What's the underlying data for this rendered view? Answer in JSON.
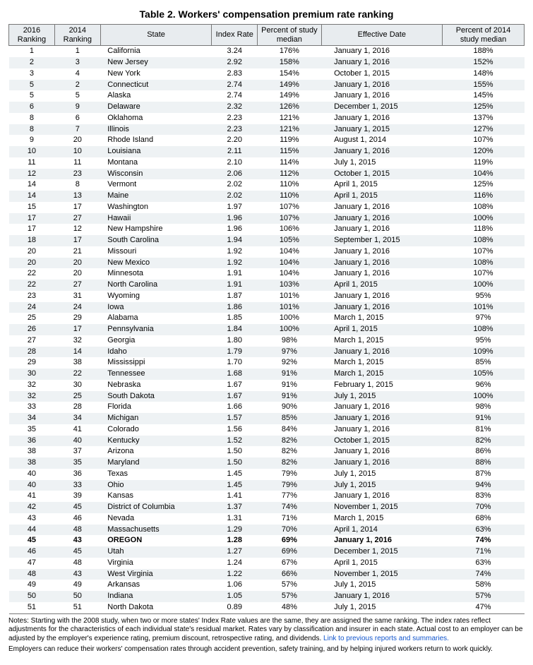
{
  "title": "Table 2. Workers' compensation premium rate ranking",
  "columns": {
    "rank16": "2016\nRanking",
    "rank14": "2014\nRanking",
    "state": "State",
    "index": "Index\nRate",
    "pct": "Percent of\nstudy median",
    "date": "Effective Date",
    "pct14": "Percent of 2014\nstudy median"
  },
  "highlight_state": "OREGON",
  "rows": [
    {
      "r16": "1",
      "r14": "1",
      "state": "California",
      "idx": "3.24",
      "pct": "176%",
      "date": "January 1, 2016",
      "pct14": "188%"
    },
    {
      "r16": "2",
      "r14": "3",
      "state": "New Jersey",
      "idx": "2.92",
      "pct": "158%",
      "date": "January 1, 2016",
      "pct14": "152%"
    },
    {
      "r16": "3",
      "r14": "4",
      "state": "New York",
      "idx": "2.83",
      "pct": "154%",
      "date": "October 1, 2015",
      "pct14": "148%"
    },
    {
      "r16": "5",
      "r14": "2",
      "state": "Connecticut",
      "idx": "2.74",
      "pct": "149%",
      "date": "January 1, 2016",
      "pct14": "155%"
    },
    {
      "r16": "5",
      "r14": "5",
      "state": "Alaska",
      "idx": "2.74",
      "pct": "149%",
      "date": "January 1, 2016",
      "pct14": "145%"
    },
    {
      "r16": "6",
      "r14": "9",
      "state": "Delaware",
      "idx": "2.32",
      "pct": "126%",
      "date": "December 1, 2015",
      "pct14": "125%"
    },
    {
      "r16": "8",
      "r14": "6",
      "state": "Oklahoma",
      "idx": "2.23",
      "pct": "121%",
      "date": "January 1, 2016",
      "pct14": "137%"
    },
    {
      "r16": "8",
      "r14": "7",
      "state": "Illinois",
      "idx": "2.23",
      "pct": "121%",
      "date": "January 1, 2015",
      "pct14": "127%"
    },
    {
      "r16": "9",
      "r14": "20",
      "state": "Rhode Island",
      "idx": "2.20",
      "pct": "119%",
      "date": "August 1, 2014",
      "pct14": "107%"
    },
    {
      "r16": "10",
      "r14": "10",
      "state": "Louisiana",
      "idx": "2.11",
      "pct": "115%",
      "date": "January 1, 2016",
      "pct14": "120%"
    },
    {
      "r16": "11",
      "r14": "11",
      "state": "Montana",
      "idx": "2.10",
      "pct": "114%",
      "date": "July 1, 2015",
      "pct14": "119%"
    },
    {
      "r16": "12",
      "r14": "23",
      "state": "Wisconsin",
      "idx": "2.06",
      "pct": "112%",
      "date": "October 1, 2015",
      "pct14": "104%"
    },
    {
      "r16": "14",
      "r14": "8",
      "state": "Vermont",
      "idx": "2.02",
      "pct": "110%",
      "date": "April 1, 2015",
      "pct14": "125%"
    },
    {
      "r16": "14",
      "r14": "13",
      "state": "Maine",
      "idx": "2.02",
      "pct": "110%",
      "date": "April 1, 2015",
      "pct14": "116%"
    },
    {
      "r16": "15",
      "r14": "17",
      "state": "Washington",
      "idx": "1.97",
      "pct": "107%",
      "date": "January 1, 2016",
      "pct14": "108%"
    },
    {
      "r16": "17",
      "r14": "27",
      "state": "Hawaii",
      "idx": "1.96",
      "pct": "107%",
      "date": "January 1, 2016",
      "pct14": "100%"
    },
    {
      "r16": "17",
      "r14": "12",
      "state": "New Hampshire",
      "idx": "1.96",
      "pct": "106%",
      "date": "January 1, 2016",
      "pct14": "118%"
    },
    {
      "r16": "18",
      "r14": "17",
      "state": "South Carolina",
      "idx": "1.94",
      "pct": "105%",
      "date": "September 1, 2015",
      "pct14": "108%"
    },
    {
      "r16": "20",
      "r14": "21",
      "state": "Missouri",
      "idx": "1.92",
      "pct": "104%",
      "date": "January 1, 2016",
      "pct14": "107%"
    },
    {
      "r16": "20",
      "r14": "20",
      "state": "New Mexico",
      "idx": "1.92",
      "pct": "104%",
      "date": "January 1, 2016",
      "pct14": "108%"
    },
    {
      "r16": "22",
      "r14": "20",
      "state": "Minnesota",
      "idx": "1.91",
      "pct": "104%",
      "date": "January 1, 2016",
      "pct14": "107%"
    },
    {
      "r16": "22",
      "r14": "27",
      "state": "North Carolina",
      "idx": "1.91",
      "pct": "103%",
      "date": "April 1, 2015",
      "pct14": "100%"
    },
    {
      "r16": "23",
      "r14": "31",
      "state": "Wyoming",
      "idx": "1.87",
      "pct": "101%",
      "date": "January 1, 2016",
      "pct14": "95%"
    },
    {
      "r16": "24",
      "r14": "24",
      "state": "Iowa",
      "idx": "1.86",
      "pct": "101%",
      "date": "January 1, 2016",
      "pct14": "101%"
    },
    {
      "r16": "25",
      "r14": "29",
      "state": "Alabama",
      "idx": "1.85",
      "pct": "100%",
      "date": "March 1, 2015",
      "pct14": "97%"
    },
    {
      "r16": "26",
      "r14": "17",
      "state": "Pennsylvania",
      "idx": "1.84",
      "pct": "100%",
      "date": "April 1, 2015",
      "pct14": "108%"
    },
    {
      "r16": "27",
      "r14": "32",
      "state": "Georgia",
      "idx": "1.80",
      "pct": "98%",
      "date": "March 1, 2015",
      "pct14": "95%"
    },
    {
      "r16": "28",
      "r14": "14",
      "state": "Idaho",
      "idx": "1.79",
      "pct": "97%",
      "date": "January 1, 2016",
      "pct14": "109%"
    },
    {
      "r16": "29",
      "r14": "38",
      "state": "Mississippi",
      "idx": "1.70",
      "pct": "92%",
      "date": "March 1, 2015",
      "pct14": "85%"
    },
    {
      "r16": "30",
      "r14": "22",
      "state": "Tennessee",
      "idx": "1.68",
      "pct": "91%",
      "date": "March 1, 2015",
      "pct14": "105%"
    },
    {
      "r16": "32",
      "r14": "30",
      "state": "Nebraska",
      "idx": "1.67",
      "pct": "91%",
      "date": "February 1, 2015",
      "pct14": "96%"
    },
    {
      "r16": "32",
      "r14": "25",
      "state": "South Dakota",
      "idx": "1.67",
      "pct": "91%",
      "date": "July 1, 2015",
      "pct14": "100%"
    },
    {
      "r16": "33",
      "r14": "28",
      "state": "Florida",
      "idx": "1.66",
      "pct": "90%",
      "date": "January 1, 2016",
      "pct14": "98%"
    },
    {
      "r16": "34",
      "r14": "34",
      "state": "Michigan",
      "idx": "1.57",
      "pct": "85%",
      "date": "January 1, 2016",
      "pct14": "91%"
    },
    {
      "r16": "35",
      "r14": "41",
      "state": "Colorado",
      "idx": "1.56",
      "pct": "84%",
      "date": "January 1, 2016",
      "pct14": "81%"
    },
    {
      "r16": "36",
      "r14": "40",
      "state": "Kentucky",
      "idx": "1.52",
      "pct": "82%",
      "date": "October 1, 2015",
      "pct14": "82%"
    },
    {
      "r16": "38",
      "r14": "37",
      "state": "Arizona",
      "idx": "1.50",
      "pct": "82%",
      "date": "January 1, 2016",
      "pct14": "86%"
    },
    {
      "r16": "38",
      "r14": "35",
      "state": "Maryland",
      "idx": "1.50",
      "pct": "82%",
      "date": "January 1, 2016",
      "pct14": "88%"
    },
    {
      "r16": "40",
      "r14": "36",
      "state": "Texas",
      "idx": "1.45",
      "pct": "79%",
      "date": "July 1, 2015",
      "pct14": "87%"
    },
    {
      "r16": "40",
      "r14": "33",
      "state": "Ohio",
      "idx": "1.45",
      "pct": "79%",
      "date": "July 1, 2015",
      "pct14": "94%"
    },
    {
      "r16": "41",
      "r14": "39",
      "state": "Kansas",
      "idx": "1.41",
      "pct": "77%",
      "date": "January 1, 2016",
      "pct14": "83%"
    },
    {
      "r16": "42",
      "r14": "45",
      "state": "District of Columbia",
      "idx": "1.37",
      "pct": "74%",
      "date": "November 1, 2015",
      "pct14": "70%"
    },
    {
      "r16": "43",
      "r14": "46",
      "state": "Nevada",
      "idx": "1.31",
      "pct": "71%",
      "date": "March 1, 2015",
      "pct14": "68%"
    },
    {
      "r16": "44",
      "r14": "48",
      "state": "Massachusetts",
      "idx": "1.29",
      "pct": "70%",
      "date": "April 1, 2014",
      "pct14": "63%"
    },
    {
      "r16": "45",
      "r14": "43",
      "state": "OREGON",
      "idx": "1.28",
      "pct": "69%",
      "date": "January 1, 2016",
      "pct14": "74%"
    },
    {
      "r16": "46",
      "r14": "45",
      "state": "Utah",
      "idx": "1.27",
      "pct": "69%",
      "date": "December 1, 2015",
      "pct14": "71%"
    },
    {
      "r16": "47",
      "r14": "48",
      "state": "Virginia",
      "idx": "1.24",
      "pct": "67%",
      "date": "April 1, 2015",
      "pct14": "63%"
    },
    {
      "r16": "48",
      "r14": "43",
      "state": "West Virginia",
      "idx": "1.22",
      "pct": "66%",
      "date": "November 1, 2015",
      "pct14": "74%"
    },
    {
      "r16": "49",
      "r14": "49",
      "state": "Arkansas",
      "idx": "1.06",
      "pct": "57%",
      "date": "July 1, 2015",
      "pct14": "58%"
    },
    {
      "r16": "50",
      "r14": "50",
      "state": "Indiana",
      "idx": "1.05",
      "pct": "57%",
      "date": "January 1, 2016",
      "pct14": "57%"
    },
    {
      "r16": "51",
      "r14": "51",
      "state": "North Dakota",
      "idx": "0.89",
      "pct": "48%",
      "date": "July 1, 2015",
      "pct14": "47%"
    }
  ],
  "notes": {
    "p1a": "Notes: Starting with the 2008 study, when two or more states' Index Rate values are the same, they are assigned the same ranking.  The index rates reflect adjustments for the characteristics of each individual state's residual market. Rates vary by classification and insurer in each state. Actual cost to an employer can be adjusted by the employer's experience rating, premium discount, retrospective rating, and dividends. ",
    "link": "Link to previous reports and summaries.",
    "p2": "Employers can reduce their workers' compensation rates through accident prevention, safety training, and by helping injured workers return to work quickly."
  },
  "style": {
    "header_bg": "#e8ecef",
    "alt_row_bg": "#eef2f4",
    "border_color": "#777777",
    "link_color": "#1155cc",
    "title_fontsize": 14,
    "table_fontsize": 11,
    "notes_fontsize": 10
  }
}
